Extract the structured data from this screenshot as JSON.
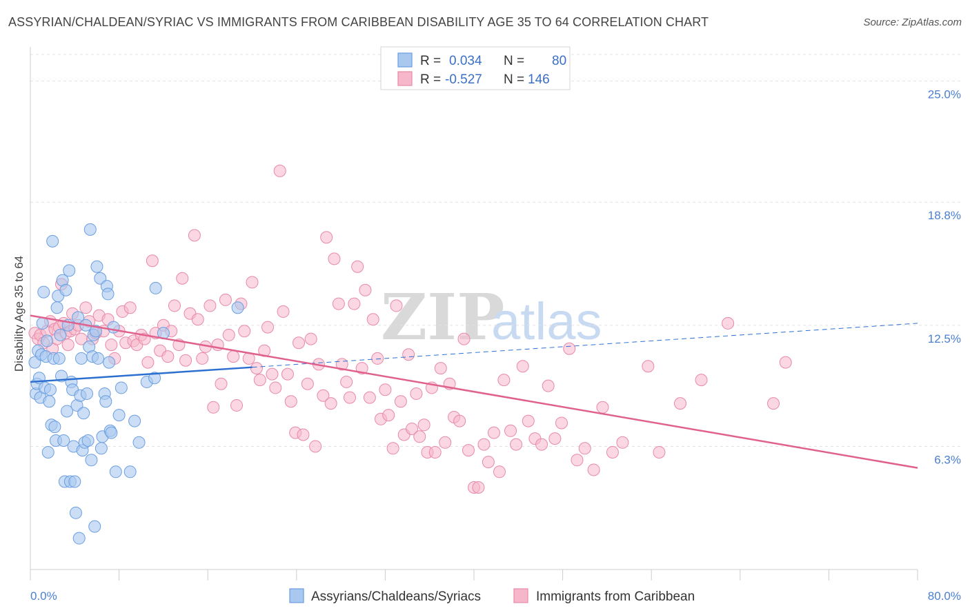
{
  "title": "ASSYRIAN/CHALDEAN/SYRIAC VS IMMIGRANTS FROM CARIBBEAN DISABILITY AGE 35 TO 64 CORRELATION CHART",
  "source": "Source: ZipAtlas.com",
  "watermark": {
    "zip": "ZIP",
    "atlas": "atlas"
  },
  "legend_box": {
    "r_label": "R =",
    "n_label": "N =",
    "series1": {
      "r": "0.034",
      "n": "80"
    },
    "series2": {
      "r": "-0.527",
      "n": "146"
    }
  },
  "colors": {
    "blue_fill": "#a9c8f0",
    "blue_stroke": "#6a9ee0",
    "blue_line": "#2c6fd0",
    "pink_fill": "#f6b7cb",
    "pink_stroke": "#e889a8",
    "pink_line": "#e0608e",
    "tick_text": "#4a7fd0",
    "grid": "#e3e3e3"
  },
  "chart_data": {
    "type": "scatter",
    "title": "ASSYRIAN/CHALDEAN/SYRIAC VS IMMIGRANTS FROM CARIBBEAN DISABILITY AGE 35 TO 64 CORRELATION CHART",
    "ylabel": "Disability Age 35 to 64",
    "xlabel": "",
    "xlim": [
      0,
      80
    ],
    "ylim": [
      0,
      26.5
    ],
    "x_tick_labels": [
      "0.0%",
      "80.0%"
    ],
    "y_ticks": [
      6.3,
      12.5,
      18.8,
      25.0
    ],
    "y_tick_labels": [
      "6.3%",
      "12.5%",
      "18.8%",
      "25.0%"
    ],
    "grid": true,
    "legend_position": "top-center",
    "series": [
      {
        "name": "Assyrians/Chaldeans/Syriacs",
        "r": 0.034,
        "n": 80,
        "trend_solid": [
          [
            0,
            9.6
          ],
          [
            20,
            10.35
          ]
        ],
        "trend_dashed": [
          [
            20,
            10.35
          ],
          [
            80,
            12.6
          ]
        ],
        "points": [
          [
            0.4,
            10.6
          ],
          [
            0.5,
            9.0
          ],
          [
            0.6,
            9.5
          ],
          [
            0.7,
            11.2
          ],
          [
            0.8,
            9.8
          ],
          [
            0.9,
            8.8
          ],
          [
            1.0,
            11.0
          ],
          [
            1.1,
            12.6
          ],
          [
            1.2,
            14.2
          ],
          [
            1.3,
            9.3
          ],
          [
            1.4,
            10.9
          ],
          [
            1.5,
            11.7
          ],
          [
            1.6,
            6.0
          ],
          [
            1.7,
            8.6
          ],
          [
            1.8,
            9.2
          ],
          [
            1.9,
            7.4
          ],
          [
            2.0,
            16.8
          ],
          [
            2.1,
            10.8
          ],
          [
            2.2,
            7.3
          ],
          [
            2.3,
            6.6
          ],
          [
            2.4,
            13.4
          ],
          [
            2.5,
            14.0
          ],
          [
            2.6,
            10.8
          ],
          [
            2.7,
            12.0
          ],
          [
            2.8,
            9.9
          ],
          [
            2.9,
            14.8
          ],
          [
            3.0,
            6.6
          ],
          [
            3.1,
            4.5
          ],
          [
            3.2,
            14.3
          ],
          [
            3.3,
            8.1
          ],
          [
            3.4,
            12.5
          ],
          [
            3.5,
            15.3
          ],
          [
            3.6,
            4.5
          ],
          [
            3.7,
            9.6
          ],
          [
            3.8,
            9.2
          ],
          [
            3.9,
            6.3
          ],
          [
            4.0,
            4.5
          ],
          [
            4.1,
            2.9
          ],
          [
            4.2,
            8.4
          ],
          [
            4.3,
            12.9
          ],
          [
            4.4,
            1.6
          ],
          [
            4.5,
            8.9
          ],
          [
            4.6,
            10.8
          ],
          [
            4.7,
            6.1
          ],
          [
            4.8,
            8.0
          ],
          [
            4.9,
            6.5
          ],
          [
            5.0,
            12.5
          ],
          [
            5.1,
            9.0
          ],
          [
            5.2,
            6.6
          ],
          [
            5.3,
            11.4
          ],
          [
            5.4,
            17.4
          ],
          [
            5.5,
            5.6
          ],
          [
            5.6,
            10.9
          ],
          [
            5.7,
            12.0
          ],
          [
            5.8,
            2.2
          ],
          [
            5.9,
            12.2
          ],
          [
            6.0,
            15.5
          ],
          [
            6.1,
            10.8
          ],
          [
            6.3,
            14.9
          ],
          [
            6.4,
            6.2
          ],
          [
            6.5,
            6.8
          ],
          [
            6.7,
            9.0
          ],
          [
            6.8,
            8.6
          ],
          [
            6.9,
            14.5
          ],
          [
            7.0,
            14.1
          ],
          [
            7.1,
            10.6
          ],
          [
            7.2,
            7.1
          ],
          [
            7.3,
            7.0
          ],
          [
            7.5,
            12.4
          ],
          [
            7.7,
            5.0
          ],
          [
            8.0,
            7.9
          ],
          [
            8.2,
            9.3
          ],
          [
            9.0,
            5.0
          ],
          [
            9.4,
            7.6
          ],
          [
            9.8,
            6.5
          ],
          [
            10.5,
            9.6
          ],
          [
            11.2,
            9.8
          ],
          [
            11.3,
            14.4
          ],
          [
            12.0,
            12.1
          ],
          [
            18.7,
            13.4
          ]
        ]
      },
      {
        "name": "Immigrants from Caribbean",
        "r": -0.527,
        "n": 146,
        "trend_solid": [
          [
            0,
            13.0
          ],
          [
            80,
            5.2
          ]
        ],
        "points": [
          [
            0.4,
            12.1
          ],
          [
            0.7,
            11.8
          ],
          [
            0.9,
            12.0
          ],
          [
            1.2,
            11.6
          ],
          [
            1.5,
            12.2
          ],
          [
            1.8,
            12.7
          ],
          [
            2.0,
            11.3
          ],
          [
            2.2,
            12.3
          ],
          [
            2.4,
            11.8
          ],
          [
            2.6,
            12.4
          ],
          [
            2.8,
            14.6
          ],
          [
            3.0,
            12.6
          ],
          [
            3.2,
            12.1
          ],
          [
            3.4,
            11.5
          ],
          [
            3.6,
            12.2
          ],
          [
            3.8,
            13.1
          ],
          [
            4.0,
            12.3
          ],
          [
            4.3,
            12.5
          ],
          [
            4.6,
            11.8
          ],
          [
            5.0,
            13.4
          ],
          [
            5.3,
            12.7
          ],
          [
            5.6,
            11.8
          ],
          [
            5.9,
            12.1
          ],
          [
            6.2,
            13.0
          ],
          [
            6.6,
            12.2
          ],
          [
            7.0,
            12.8
          ],
          [
            7.3,
            11.5
          ],
          [
            7.6,
            10.8
          ],
          [
            8.0,
            12.2
          ],
          [
            8.3,
            13.2
          ],
          [
            8.6,
            11.6
          ],
          [
            9.0,
            13.4
          ],
          [
            9.3,
            11.7
          ],
          [
            9.6,
            11.5
          ],
          [
            10.0,
            12.0
          ],
          [
            10.3,
            11.8
          ],
          [
            10.6,
            10.6
          ],
          [
            11.0,
            15.8
          ],
          [
            11.3,
            12.1
          ],
          [
            11.7,
            11.2
          ],
          [
            12.0,
            12.5
          ],
          [
            12.4,
            10.9
          ],
          [
            12.7,
            12.2
          ],
          [
            13.0,
            13.5
          ],
          [
            13.4,
            11.5
          ],
          [
            13.7,
            14.9
          ],
          [
            14.0,
            10.7
          ],
          [
            14.4,
            13.1
          ],
          [
            14.8,
            17.1
          ],
          [
            15.1,
            12.8
          ],
          [
            15.5,
            10.8
          ],
          [
            15.8,
            11.4
          ],
          [
            16.2,
            13.5
          ],
          [
            16.5,
            8.3
          ],
          [
            16.9,
            11.5
          ],
          [
            17.2,
            9.5
          ],
          [
            17.6,
            13.8
          ],
          [
            17.9,
            12.0
          ],
          [
            18.3,
            10.9
          ],
          [
            18.6,
            8.4
          ],
          [
            19.0,
            13.6
          ],
          [
            19.3,
            12.2
          ],
          [
            19.7,
            10.8
          ],
          [
            20.0,
            14.7
          ],
          [
            20.4,
            10.3
          ],
          [
            20.7,
            9.7
          ],
          [
            21.1,
            11.2
          ],
          [
            21.4,
            12.4
          ],
          [
            21.8,
            10.0
          ],
          [
            22.1,
            9.3
          ],
          [
            22.5,
            20.4
          ],
          [
            22.8,
            13.2
          ],
          [
            23.2,
            10.0
          ],
          [
            23.5,
            8.6
          ],
          [
            23.9,
            7.0
          ],
          [
            24.2,
            11.6
          ],
          [
            24.6,
            6.9
          ],
          [
            25.0,
            9.5
          ],
          [
            25.3,
            11.8
          ],
          [
            25.7,
            6.3
          ],
          [
            26.0,
            10.5
          ],
          [
            26.4,
            8.9
          ],
          [
            26.7,
            17.0
          ],
          [
            27.1,
            8.5
          ],
          [
            27.4,
            15.9
          ],
          [
            27.8,
            13.6
          ],
          [
            28.1,
            10.5
          ],
          [
            28.5,
            9.6
          ],
          [
            28.8,
            8.8
          ],
          [
            29.2,
            13.6
          ],
          [
            29.5,
            15.5
          ],
          [
            29.9,
            10.3
          ],
          [
            30.2,
            14.3
          ],
          [
            30.6,
            8.8
          ],
          [
            30.9,
            12.8
          ],
          [
            31.3,
            10.8
          ],
          [
            31.6,
            7.7
          ],
          [
            32.0,
            9.2
          ],
          [
            32.3,
            7.9
          ],
          [
            32.7,
            6.2
          ],
          [
            33.0,
            13.5
          ],
          [
            33.4,
            8.6
          ],
          [
            33.7,
            6.9
          ],
          [
            34.1,
            11.0
          ],
          [
            34.4,
            7.2
          ],
          [
            34.8,
            9.0
          ],
          [
            35.1,
            6.8
          ],
          [
            35.5,
            7.4
          ],
          [
            35.8,
            6.0
          ],
          [
            36.2,
            9.3
          ],
          [
            36.5,
            6.0
          ],
          [
            37.0,
            10.3
          ],
          [
            37.4,
            6.5
          ],
          [
            37.8,
            9.5
          ],
          [
            38.2,
            7.8
          ],
          [
            38.7,
            7.6
          ],
          [
            39.1,
            11.8
          ],
          [
            39.5,
            6.1
          ],
          [
            40.0,
            4.2
          ],
          [
            40.4,
            4.2
          ],
          [
            40.9,
            6.4
          ],
          [
            41.3,
            5.5
          ],
          [
            41.8,
            7.0
          ],
          [
            42.3,
            5.0
          ],
          [
            42.7,
            9.7
          ],
          [
            43.3,
            7.1
          ],
          [
            43.8,
            6.4
          ],
          [
            44.4,
            10.4
          ],
          [
            44.9,
            7.6
          ],
          [
            45.5,
            6.7
          ],
          [
            46.1,
            6.4
          ],
          [
            46.7,
            9.4
          ],
          [
            47.3,
            6.7
          ],
          [
            47.9,
            7.5
          ],
          [
            48.6,
            11.3
          ],
          [
            49.3,
            5.6
          ],
          [
            50.0,
            6.2
          ],
          [
            50.8,
            5.1
          ],
          [
            51.6,
            8.3
          ],
          [
            52.5,
            6.0
          ],
          [
            53.4,
            6.5
          ],
          [
            55.7,
            10.4
          ],
          [
            56.7,
            6.0
          ],
          [
            58.6,
            8.5
          ],
          [
            60.5,
            9.7
          ],
          [
            62.9,
            12.6
          ],
          [
            67.0,
            8.5
          ],
          [
            68.1,
            10.6
          ]
        ]
      }
    ]
  },
  "bottom_legend": {
    "series1": "Assyrians/Chaldeans/Syriacs",
    "series2": "Immigrants from Caribbean"
  }
}
